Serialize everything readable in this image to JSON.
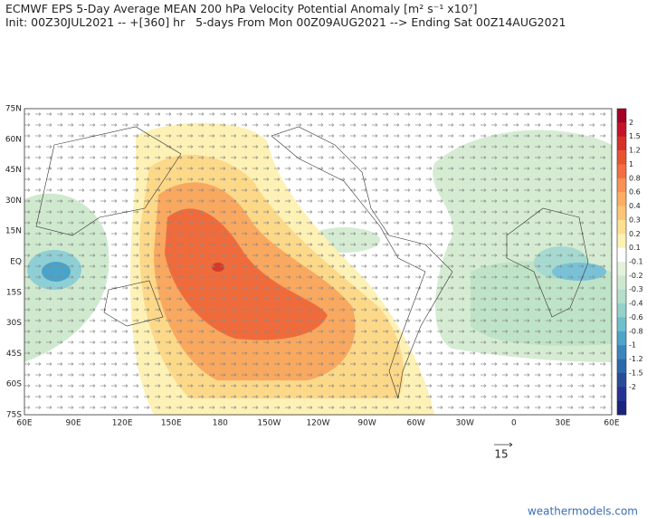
{
  "header": {
    "title": "ECMWF EPS 5-Day Average MEAN 200 hPa Velocity Potential Anomaly [m² s⁻¹ x10⁷]",
    "subtitle": "Init: 00Z30JUL2021 -- +[360] hr   5-days From Mon 00Z09AUG2021 --> Ending Sat 00Z14AUG2021"
  },
  "map": {
    "lat_labels": [
      "75N",
      "60N",
      "45N",
      "30N",
      "15N",
      "EQ",
      "15S",
      "30S",
      "45S",
      "60S",
      "75S"
    ],
    "lon_labels": [
      "60E",
      "90E",
      "120E",
      "150E",
      "180",
      "150W",
      "120W",
      "90W",
      "60W",
      "30W",
      "0",
      "30E",
      "60E"
    ]
  },
  "colorbar": {
    "labels": [
      "2",
      "1.5",
      "1.2",
      "1",
      "0.8",
      "0.6",
      "0.4",
      "0.3",
      "0.2",
      "0.1",
      "-0.1",
      "-0.2",
      "-0.3",
      "-0.4",
      "-0.6",
      "-0.8",
      "-1",
      "-1.2",
      "-1.5",
      "-2"
    ]
  },
  "vector_legend": "15",
  "footer": "weathermodels.com"
}
